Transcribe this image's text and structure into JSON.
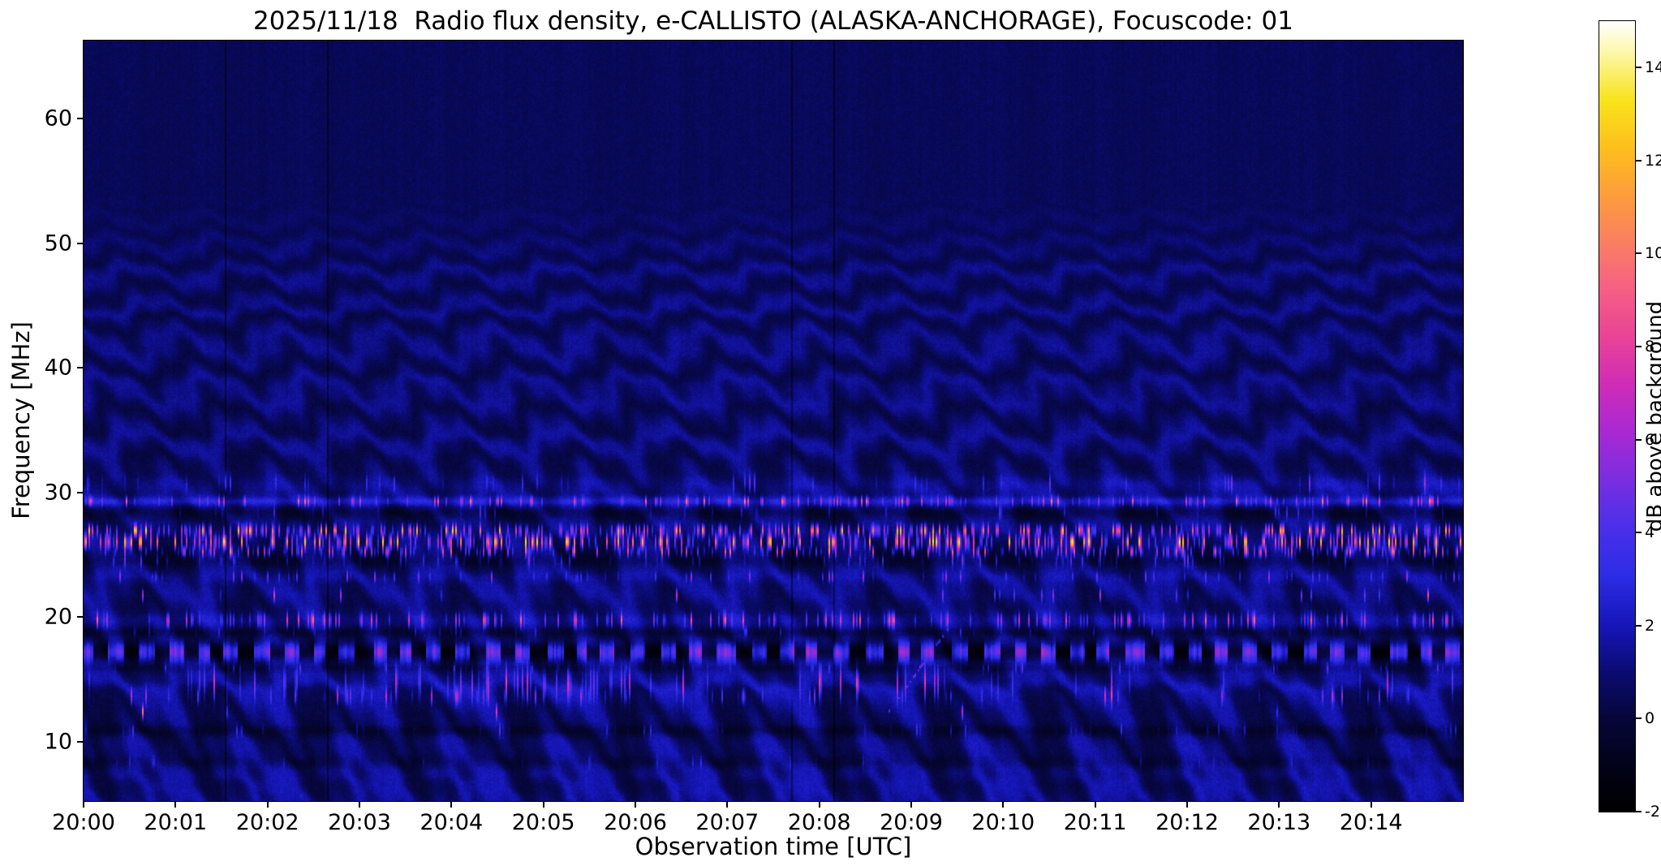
{
  "figure": {
    "title": "2025/11/18  Radio flux density, e-CALLISTO (ALASKA-ANCHORAGE), Focuscode: 01",
    "xlabel": "Observation time [UTC]",
    "ylabel": "Frequency [MHz]",
    "colorbar_label": "dB above background"
  },
  "chart_data": {
    "type": "heatmap",
    "title": "2025/11/18  Radio flux density, e-CALLISTO (ALASKA-ANCHORAGE), Focuscode: 01",
    "date": "2025/11/18",
    "instrument": "e-CALLISTO",
    "station": "ALASKA-ANCHORAGE",
    "focuscode": "01",
    "xlabel": "Observation time [UTC]",
    "ylabel": "Frequency [MHz]",
    "x_ticks": [
      "20:00",
      "20:01",
      "20:02",
      "20:03",
      "20:04",
      "20:05",
      "20:06",
      "20:07",
      "20:08",
      "20:09",
      "20:10",
      "20:11",
      "20:12",
      "20:13",
      "20:14"
    ],
    "x_range_minutes": [
      0,
      15
    ],
    "y_ticks": [
      60,
      50,
      40,
      30,
      20,
      10
    ],
    "y_range_mhz": [
      5.25,
      66.25
    ],
    "colorbar": {
      "label": "dB above background",
      "ticks": [
        14,
        12,
        10,
        8,
        6,
        4,
        2,
        0,
        -2
      ],
      "range_db": [
        -2,
        15
      ]
    },
    "colormap_stops": [
      [
        0.0,
        "#000000"
      ],
      [
        0.055,
        "#020218"
      ],
      [
        0.115,
        "#060638"
      ],
      [
        0.175,
        "#0b0b70"
      ],
      [
        0.235,
        "#1616b8"
      ],
      [
        0.3,
        "#2d2de6"
      ],
      [
        0.36,
        "#4b2fe9"
      ],
      [
        0.42,
        "#7a2ee0"
      ],
      [
        0.48,
        "#a829d2"
      ],
      [
        0.54,
        "#cf2cb8"
      ],
      [
        0.6,
        "#e84397"
      ],
      [
        0.66,
        "#f55f85"
      ],
      [
        0.72,
        "#fa7f62"
      ],
      [
        0.78,
        "#fd9d3c"
      ],
      [
        0.84,
        "#febf1d"
      ],
      [
        0.9,
        "#f8e31b"
      ],
      [
        0.96,
        "#fdf7a8"
      ],
      [
        1.0,
        "#ffffff"
      ]
    ],
    "background_level_db": 0.5,
    "description": "Dynamic radio spectrum: dark-blue background with wavy interference fringes below ~54 MHz, quiet dark band above; strong speckled RFI bands near 25-27, 29-30 and 19-20 MHz; dark dashed channel near 17 MHz; patchy activity 13-16 MHz; short drifting burst near 20:09 between ~12 and ~19.5 MHz.",
    "fringe": {
      "f_max_mhz": 54,
      "lambda0_mhz": 1.7,
      "lambda_slope": 0.055,
      "wobble_period_min": 1.15,
      "wobble_amp": 2.0,
      "wobble2_period_min": 0.38,
      "wobble2_amp": 0.8
    },
    "rfi_bands": [
      {
        "f": 30.7,
        "w": 0.7,
        "add": 0.75,
        "p": 0.08,
        "smax": 4,
        "ramp": true
      },
      {
        "f": 29.25,
        "w": 0.35,
        "add": 1.4,
        "p": 0.22,
        "smax": 8
      },
      {
        "f": 28.35,
        "w": 0.5,
        "add": -0.9,
        "p": 0.05,
        "smax": 3
      },
      {
        "f": 26.9,
        "w": 0.45,
        "add": 0.3,
        "p": 0.4,
        "smax": 12
      },
      {
        "f": 26.0,
        "w": 0.55,
        "add": 0.1,
        "p": 0.45,
        "smax": 13
      },
      {
        "f": 25.2,
        "w": 0.4,
        "add": -0.3,
        "p": 0.3,
        "smax": 9
      },
      {
        "f": 24.5,
        "w": 0.5,
        "add": -0.7,
        "p": 0.12,
        "smax": 4
      },
      {
        "f": 23.2,
        "w": 0.4,
        "add": 0.25,
        "p": 0.08,
        "smax": 5
      },
      {
        "f": 21.7,
        "w": 0.45,
        "add": 0.1,
        "p": 0.04,
        "smax": 9
      },
      {
        "f": 19.7,
        "w": 0.55,
        "add": 0.8,
        "p": 0.28,
        "smax": 8
      },
      {
        "f": 18.75,
        "w": 0.35,
        "add": -0.6,
        "p": 0.05,
        "smax": 3
      },
      {
        "f": 17.15,
        "w": 0.7,
        "add": -1.7,
        "dash": {
          "period_s": 19,
          "duty": 0.5,
          "bright": 6.5
        }
      },
      {
        "f": 15.85,
        "w": 0.35,
        "add": -0.5,
        "p": 0.08,
        "smax": 3
      },
      {
        "f": 14.6,
        "w": 1.2,
        "add": 0.45,
        "p": 0.2,
        "smax": 7,
        "window": [
          4.3,
          2.8,
          0.35
        ]
      },
      {
        "f": 13.6,
        "w": 0.6,
        "add": 0.2,
        "p": 0.12,
        "smax": 6,
        "window": [
          4.5,
          3.0,
          0.4
        ]
      },
      {
        "f": 12.35,
        "w": 0.5,
        "add": 0.1,
        "p": 0.025,
        "smax": 11,
        "window": [
          1.6,
          1.2,
          0.25
        ]
      },
      {
        "f": 10.85,
        "w": 0.45,
        "add": -0.65,
        "p": 0.1,
        "smax": 3
      },
      {
        "f": 8.3,
        "w": 0.5,
        "add": -0.45,
        "p": 0.05,
        "smax": 2
      }
    ],
    "drifting_burst": {
      "t_start_min": 8.75,
      "t_end_min": 9.45,
      "f_start_mhz": 12.3,
      "f_end_mhz": 19.5,
      "peak_db": 6
    }
  },
  "layout_colors": {
    "page_bg": "#ffffff",
    "text": "#000000"
  }
}
